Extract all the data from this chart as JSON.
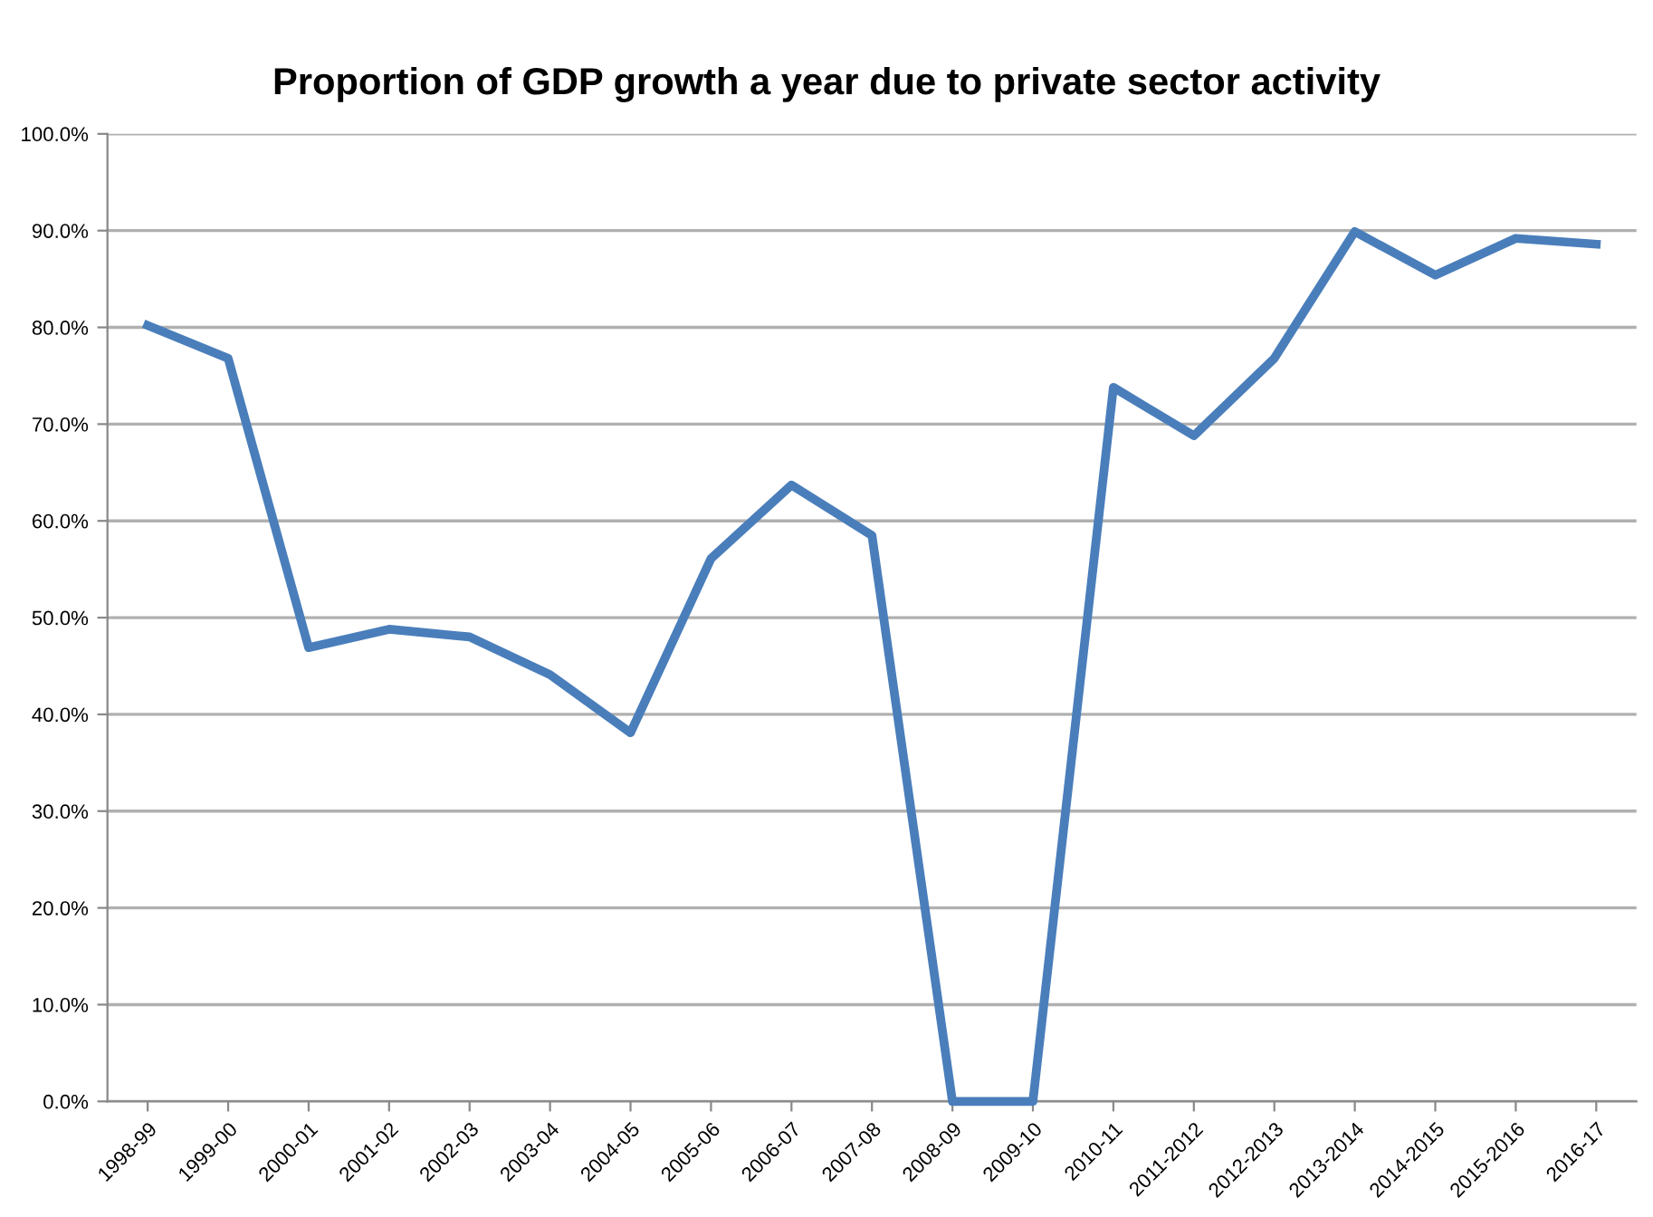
{
  "chart_data": {
    "type": "line",
    "title": "Proportion of GDP growth a year due to private sector activity",
    "categories": [
      "1998-99",
      "1999-00",
      "2000-01",
      "2001-02",
      "2002-03",
      "2003-04",
      "2004-05",
      "2005-06",
      "2006-07",
      "2007-08",
      "2008-09",
      "2009-10",
      "2010-11",
      "2011-2012",
      "2012-2013",
      "2013-2014",
      "2014-2015",
      "2015-2016",
      "2016-17"
    ],
    "series": [
      {
        "color": "#4a7ebb",
        "values": [
          80.2,
          76.8,
          46.9,
          48.8,
          48.0,
          44.1,
          38.1,
          56.1,
          63.7,
          58.5,
          0,
          0,
          73.8,
          68.8,
          76.8,
          89.9,
          85.4,
          89.2,
          88.6
        ]
      }
    ],
    "ylim": [
      0,
      100
    ],
    "yticks": [
      {
        "value": 0,
        "label": "0.0%"
      },
      {
        "value": 10,
        "label": "10.0%"
      },
      {
        "value": 20,
        "label": "20.0%"
      },
      {
        "value": 30,
        "label": "30.0%"
      },
      {
        "value": 40,
        "label": "40.0%"
      },
      {
        "value": 50,
        "label": "50.0%"
      },
      {
        "value": 60,
        "label": "60.0%"
      },
      {
        "value": 70,
        "label": "70.0%"
      },
      {
        "value": 80,
        "label": "80.0%"
      },
      {
        "value": 90,
        "label": "90.0%"
      },
      {
        "value": 100,
        "label": "100.0%"
      }
    ],
    "grid": "y",
    "marker": "none",
    "line_style": "solid",
    "legend": false
  }
}
